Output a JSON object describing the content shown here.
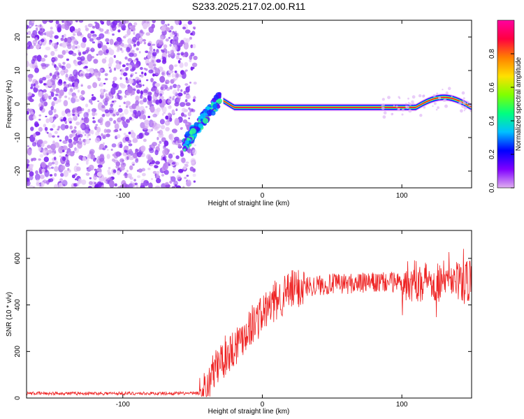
{
  "title": "S233.2025.217.02.00.R11",
  "chart_data": [
    {
      "type": "heatmap",
      "xlabel": "Height of straight line (km)",
      "ylabel": "Frequency (Hz)",
      "xlim": [
        -169,
        150
      ],
      "ylim": [
        -25,
        25
      ],
      "xticks": [
        -100,
        0,
        100
      ],
      "yticks": [
        -20,
        -10,
        0,
        10,
        20
      ],
      "colorbar": {
        "label": "Normalized spectral amplitude",
        "range": [
          0,
          1
        ],
        "ticks": [
          "0.0",
          "0.2",
          "0.4",
          "0.6",
          "0.8"
        ],
        "colormap": [
          "#e0b0f0",
          "#8000ff",
          "#0000ff",
          "#00c0ff",
          "#00ff80",
          "#80ff00",
          "#ffe000",
          "#ff8000",
          "#ff0040",
          "#ff00a0"
        ]
      },
      "features": {
        "noise_region_x": [
          -169,
          -50
        ],
        "transition_x": [
          -52,
          -28
        ],
        "band_center_freq": -1,
        "band_x": [
          -28,
          150
        ]
      }
    },
    {
      "type": "line",
      "xlabel": "Height of straight line (km)",
      "ylabel": "SNR (10 * v/v)",
      "xlim": [
        -169,
        150
      ],
      "ylim": [
        0,
        720
      ],
      "xticks": [
        -100,
        0,
        100
      ],
      "yticks": [
        0,
        200,
        400,
        600
      ],
      "color": "#ee2222",
      "profile": [
        [
          -169,
          20
        ],
        [
          -45,
          20
        ],
        [
          -40,
          40
        ],
        [
          -35,
          110
        ],
        [
          -30,
          160
        ],
        [
          -20,
          220
        ],
        [
          -10,
          300
        ],
        [
          0,
          360
        ],
        [
          10,
          420
        ],
        [
          20,
          460
        ],
        [
          30,
          480
        ],
        [
          50,
          490
        ],
        [
          80,
          495
        ],
        [
          100,
          500
        ],
        [
          120,
          505
        ],
        [
          140,
          500
        ],
        [
          150,
          500
        ]
      ]
    }
  ]
}
